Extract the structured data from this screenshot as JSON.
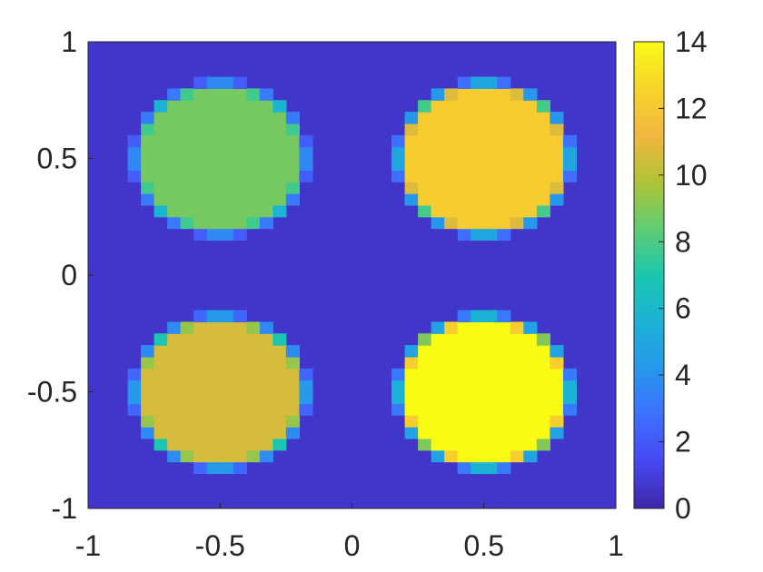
{
  "chart_data": {
    "type": "heatmap",
    "title": "",
    "xlabel": "",
    "ylabel": "",
    "xlim": [
      -1,
      1
    ],
    "ylim": [
      -1,
      1
    ],
    "grid": false,
    "colormap": "parula",
    "colorbar": {
      "location": "right",
      "clim": [
        0,
        14
      ],
      "ticks": [
        "0",
        "2",
        "4",
        "6",
        "8",
        "10",
        "12",
        "14"
      ]
    },
    "x_tick_labels": [
      "-1",
      "-0.5",
      "0",
      "0.5",
      "1"
    ],
    "y_tick_labels": [
      "1",
      "0.5",
      "0",
      "-0.5",
      "-1"
    ],
    "resolution": 40,
    "background_value": 0.6,
    "circles": [
      {
        "center_x": -0.5,
        "center_y": 0.5,
        "radius": 0.32,
        "value": 8.8
      },
      {
        "center_x": 0.5,
        "center_y": 0.5,
        "radius": 0.32,
        "value": 12.2
      },
      {
        "center_x": -0.5,
        "center_y": -0.5,
        "radius": 0.32,
        "value": 10.6
      },
      {
        "center_x": 0.5,
        "center_y": -0.5,
        "radius": 0.32,
        "value": 14.0
      }
    ]
  }
}
